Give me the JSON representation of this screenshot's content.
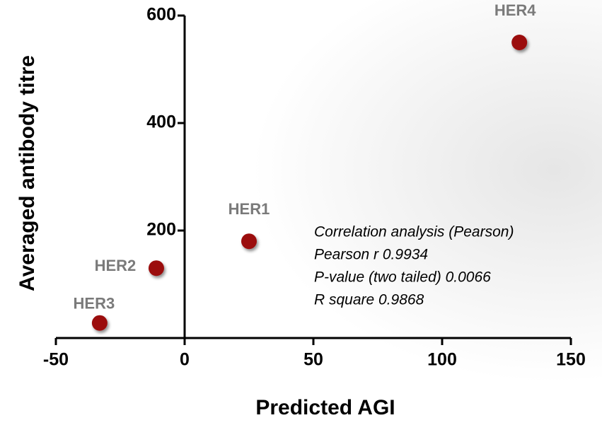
{
  "chart_data": {
    "type": "scatter",
    "x_label": "Predicted AGI",
    "y_label": "Averaged antibody titre",
    "xlim": [
      -50,
      150
    ],
    "xticks": [
      -50,
      0,
      50,
      100,
      150
    ],
    "ylim": [
      0,
      600
    ],
    "yticks": [
      200,
      400,
      600
    ],
    "series": [
      {
        "color": "#9b0b0b",
        "x": [
          25,
          -11,
          -33,
          130
        ],
        "values": [
          180,
          130,
          28,
          550
        ],
        "point_labels": [
          "HER1",
          "HER2",
          "HER3",
          "HER4"
        ]
      }
    ],
    "annotation": [
      "Correlation analysis (Pearson)",
      "Pearson r 0.9934",
      "P-value (two tailed) 0.0066",
      "R square 0.9868"
    ]
  }
}
